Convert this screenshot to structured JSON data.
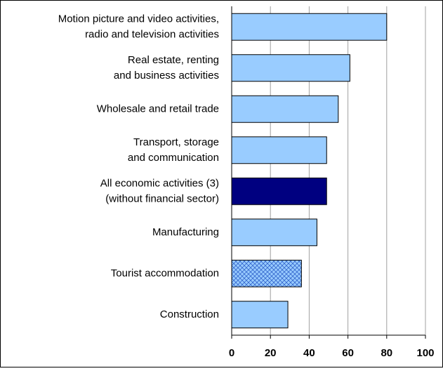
{
  "chart_data": {
    "type": "bar",
    "orientation": "horizontal",
    "categories": [
      [
        "Motion picture and video activities,",
        "radio and television activities"
      ],
      [
        "Real estate, renting",
        "and business activities"
      ],
      [
        "Wholesale and retail trade"
      ],
      [
        "Transport, storage",
        "and communication"
      ],
      [
        "All economic activities (3)",
        "(without financial sector)"
      ],
      [
        "Manufacturing"
      ],
      [
        "Tourist accommodation"
      ],
      [
        "Construction"
      ]
    ],
    "values": [
      80,
      61,
      55,
      49,
      49,
      44,
      36,
      29
    ],
    "colors": [
      "#99ccff",
      "#99ccff",
      "#99ccff",
      "#99ccff",
      "#000080",
      "#99ccff",
      "#99ccff",
      "#99ccff"
    ],
    "hatched": [
      false,
      false,
      false,
      false,
      false,
      false,
      true,
      false
    ],
    "xlim": [
      0,
      100
    ],
    "xticks": [
      0,
      20,
      40,
      60,
      80,
      100
    ],
    "grid": true
  }
}
